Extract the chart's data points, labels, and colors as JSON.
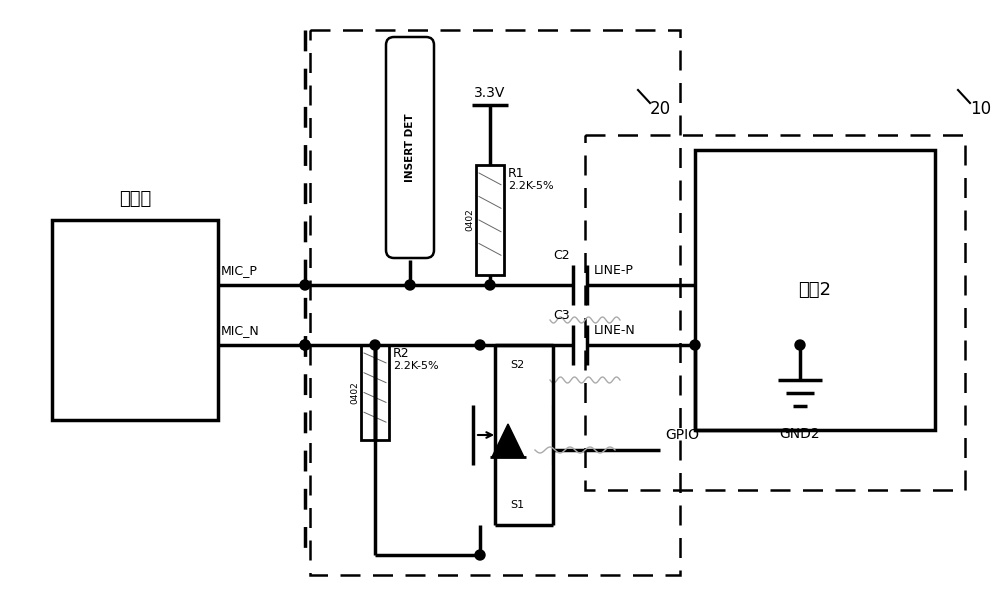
{
  "bg": "#ffffff",
  "mic_label": "麦克风",
  "sys2_label": "系统2",
  "label_20": "20",
  "label_10": "10",
  "label_GND2": "GND2",
  "label_GPIO": "GPIO",
  "label_MIC_P": "MIC_P",
  "label_MIC_N": "MIC_N",
  "label_LINE_P": "LINE-P",
  "label_LINE_N": "LINE-N",
  "label_R1": "R1",
  "label_R1_val": "2.2K-5%",
  "label_R1_pkg": "0402",
  "label_R2": "R2",
  "label_R2_val": "2.2K-5%",
  "label_R2_pkg": "0402",
  "label_C2": "C2",
  "label_C3": "C3",
  "label_3V3": "3.3V",
  "label_INSERT_DET": "INSERT DET",
  "label_S1": "S1",
  "label_S2": "S2"
}
